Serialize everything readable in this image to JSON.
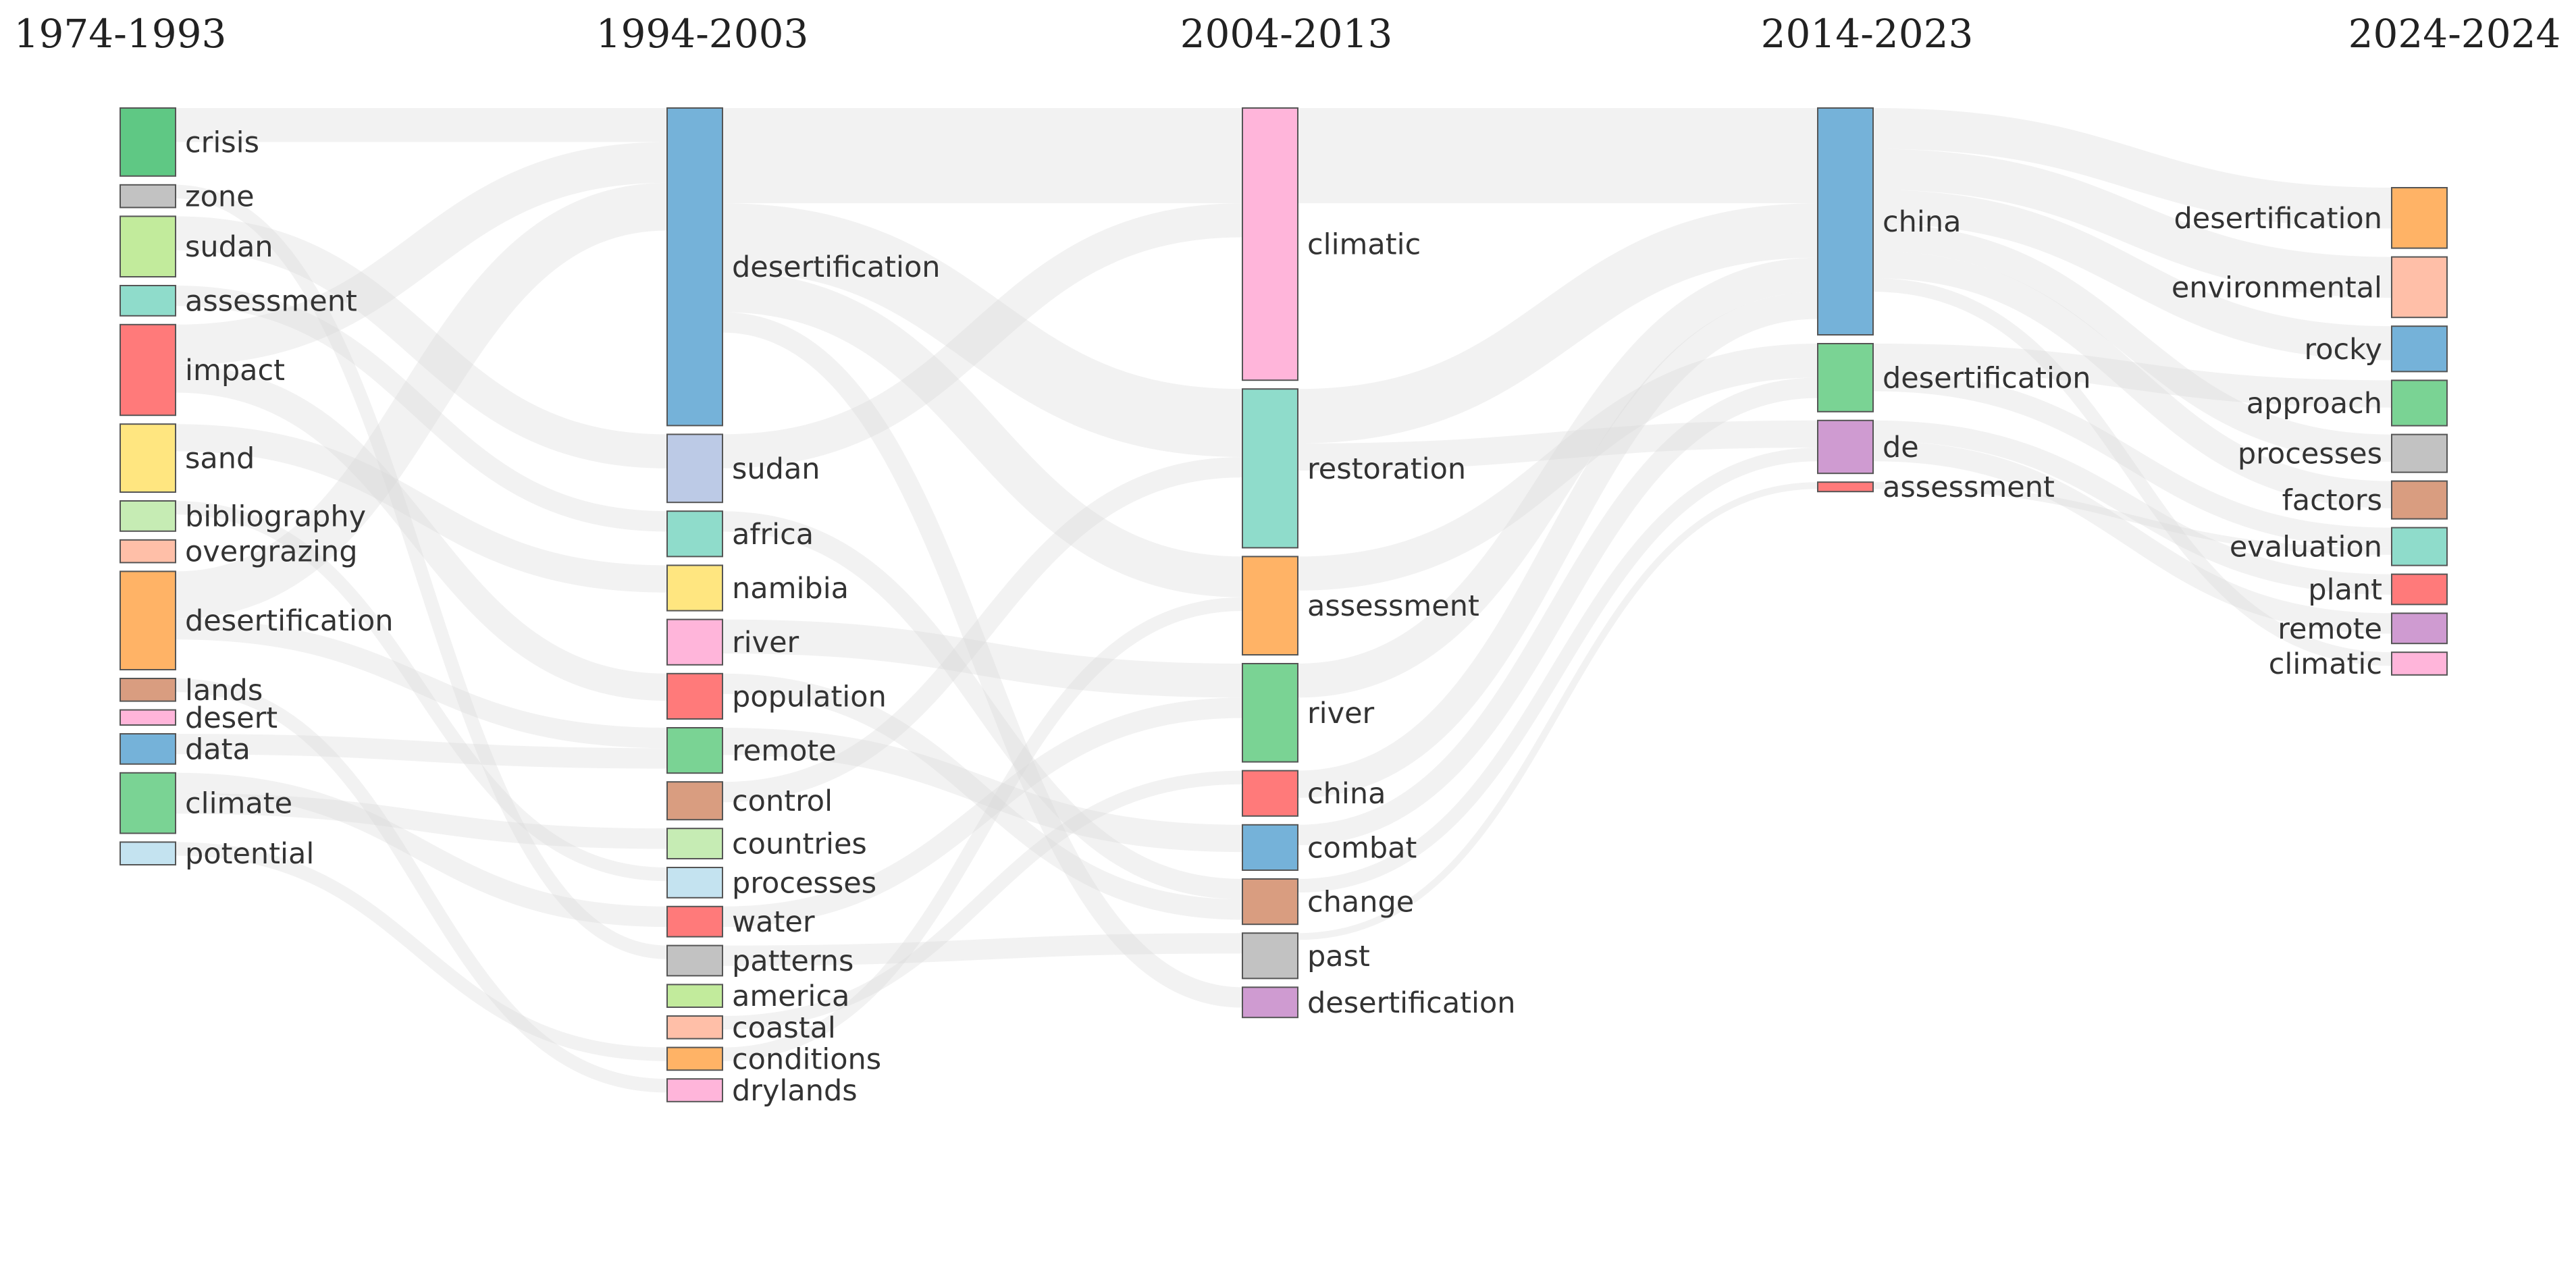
{
  "chart_data": {
    "type": "sankey",
    "title": "",
    "periods": [
      "1974-1993",
      "1994-2003",
      "2004-2013",
      "2014-2023",
      "2024-2024"
    ],
    "columns": [
      {
        "period": "1974-1993",
        "nodes": [
          {
            "label": "crisis",
            "value": 9,
            "color": "#5fc884"
          },
          {
            "label": "zone",
            "value": 3,
            "color": "#c2c2c2"
          },
          {
            "label": "sudan",
            "value": 8,
            "color": "#c2eb9c"
          },
          {
            "label": "assessment",
            "value": 4,
            "color": "#8fdccb"
          },
          {
            "label": "impact",
            "value": 12,
            "color": "#ff7a7a"
          },
          {
            "label": "sand",
            "value": 9,
            "color": "#ffe680"
          },
          {
            "label": "bibliography",
            "value": 4,
            "color": "#c6ecb4"
          },
          {
            "label": "overgrazing",
            "value": 3,
            "color": "#ffbfa8"
          },
          {
            "label": "desertification",
            "value": 13,
            "color": "#ffb366"
          },
          {
            "label": "lands",
            "value": 3,
            "color": "#d99d80"
          },
          {
            "label": "desert",
            "value": 2,
            "color": "#ffb5da"
          },
          {
            "label": "data",
            "value": 4,
            "color": "#75b2d9"
          },
          {
            "label": "climate",
            "value": 8,
            "color": "#7ad394"
          },
          {
            "label": "potential",
            "value": 3,
            "color": "#c4e3f0"
          }
        ]
      },
      {
        "period": "1994-2003",
        "nodes": [
          {
            "label": "desertification",
            "value": 42,
            "color": "#75b2d9"
          },
          {
            "label": "sudan",
            "value": 9,
            "color": "#bccae6"
          },
          {
            "label": "africa",
            "value": 6,
            "color": "#8fdccb"
          },
          {
            "label": "namibia",
            "value": 6,
            "color": "#ffe680"
          },
          {
            "label": "river",
            "value": 6,
            "color": "#ffb5da"
          },
          {
            "label": "population",
            "value": 6,
            "color": "#ff7a7a"
          },
          {
            "label": "remote",
            "value": 6,
            "color": "#7ad394"
          },
          {
            "label": "control",
            "value": 5,
            "color": "#d99d80"
          },
          {
            "label": "countries",
            "value": 4,
            "color": "#c6ecb4"
          },
          {
            "label": "processes",
            "value": 4,
            "color": "#c4e3f0"
          },
          {
            "label": "water",
            "value": 4,
            "color": "#ff7a7a"
          },
          {
            "label": "patterns",
            "value": 4,
            "color": "#c2c2c2"
          },
          {
            "label": "america",
            "value": 3,
            "color": "#c2eb9c"
          },
          {
            "label": "coastal",
            "value": 3,
            "color": "#ffbfa8"
          },
          {
            "label": "conditions",
            "value": 3,
            "color": "#ffb366"
          },
          {
            "label": "drylands",
            "value": 3,
            "color": "#ffb5da"
          }
        ]
      },
      {
        "period": "2004-2013",
        "nodes": [
          {
            "label": "climatic",
            "value": 36,
            "color": "#ffb5da"
          },
          {
            "label": "restoration",
            "value": 21,
            "color": "#8fdccb"
          },
          {
            "label": "assessment",
            "value": 13,
            "color": "#ffb366"
          },
          {
            "label": "river",
            "value": 13,
            "color": "#7ad394"
          },
          {
            "label": "china",
            "value": 6,
            "color": "#ff7a7a"
          },
          {
            "label": "combat",
            "value": 6,
            "color": "#75b2d9"
          },
          {
            "label": "change",
            "value": 6,
            "color": "#d99d80"
          },
          {
            "label": "past",
            "value": 6,
            "color": "#c2c2c2"
          },
          {
            "label": "desertification",
            "value": 4,
            "color": "#cf9bd1"
          }
        ]
      },
      {
        "period": "2014-2023",
        "nodes": [
          {
            "label": "china",
            "value": 30,
            "color": "#75b2d9"
          },
          {
            "label": "desertification",
            "value": 9,
            "color": "#7ad394"
          },
          {
            "label": "de",
            "value": 7,
            "color": "#cf9bd1"
          },
          {
            "label": "assessment",
            "value": 1,
            "color": "#ff7a7a"
          }
        ]
      },
      {
        "period": "2024-2024",
        "nodes": [
          {
            "label": "desertification",
            "value": 8,
            "color": "#ffb366"
          },
          {
            "label": "environmental",
            "value": 8,
            "color": "#ffbfa8"
          },
          {
            "label": "rocky",
            "value": 6,
            "color": "#75b2d9"
          },
          {
            "label": "approach",
            "value": 6,
            "color": "#7ad394"
          },
          {
            "label": "processes",
            "value": 5,
            "color": "#c2c2c2"
          },
          {
            "label": "factors",
            "value": 5,
            "color": "#d99d80"
          },
          {
            "label": "evaluation",
            "value": 5,
            "color": "#8fdccb"
          },
          {
            "label": "plant",
            "value": 4,
            "color": "#ff7a7a"
          },
          {
            "label": "remote",
            "value": 4,
            "color": "#cf9bd1"
          },
          {
            "label": "climatic",
            "value": 3,
            "color": "#ffb5da"
          }
        ]
      }
    ],
    "links": [
      {
        "source": [
          0,
          0
        ],
        "target": [
          1,
          0
        ],
        "value": 5
      },
      {
        "source": [
          0,
          2
        ],
        "target": [
          1,
          1
        ],
        "value": 5
      },
      {
        "source": [
          0,
          4
        ],
        "target": [
          1,
          0
        ],
        "value": 6
      },
      {
        "source": [
          0,
          4
        ],
        "target": [
          1,
          5
        ],
        "value": 4
      },
      {
        "source": [
          0,
          5
        ],
        "target": [
          1,
          3
        ],
        "value": 4
      },
      {
        "source": [
          0,
          8
        ],
        "target": [
          1,
          0
        ],
        "value": 7
      },
      {
        "source": [
          0,
          8
        ],
        "target": [
          1,
          6
        ],
        "value": 3
      },
      {
        "source": [
          0,
          12
        ],
        "target": [
          1,
          10
        ],
        "value": 3
      },
      {
        "source": [
          0,
          12
        ],
        "target": [
          1,
          8
        ],
        "value": 3
      },
      {
        "source": [
          0,
          11
        ],
        "target": [
          1,
          6
        ],
        "value": 3
      },
      {
        "source": [
          0,
          3
        ],
        "target": [
          1,
          2
        ],
        "value": 3
      },
      {
        "source": [
          0,
          13
        ],
        "target": [
          1,
          14
        ],
        "value": 2
      },
      {
        "source": [
          0,
          1
        ],
        "target": [
          1,
          11
        ],
        "value": 2
      },
      {
        "source": [
          0,
          9
        ],
        "target": [
          1,
          15
        ],
        "value": 2
      },
      {
        "source": [
          0,
          6
        ],
        "target": [
          1,
          9
        ],
        "value": 2
      },
      {
        "source": [
          1,
          0
        ],
        "target": [
          2,
          0
        ],
        "value": 14
      },
      {
        "source": [
          1,
          0
        ],
        "target": [
          2,
          1
        ],
        "value": 10
      },
      {
        "source": [
          1,
          0
        ],
        "target": [
          2,
          2
        ],
        "value": 6
      },
      {
        "source": [
          1,
          0
        ],
        "target": [
          2,
          8
        ],
        "value": 3
      },
      {
        "source": [
          1,
          4
        ],
        "target": [
          2,
          3
        ],
        "value": 5
      },
      {
        "source": [
          1,
          1
        ],
        "target": [
          2,
          0
        ],
        "value": 5
      },
      {
        "source": [
          1,
          6
        ],
        "target": [
          2,
          5
        ],
        "value": 4
      },
      {
        "source": [
          1,
          7
        ],
        "target": [
          2,
          1
        ],
        "value": 3
      },
      {
        "source": [
          1,
          2
        ],
        "target": [
          2,
          6
        ],
        "value": 3
      },
      {
        "source": [
          1,
          10
        ],
        "target": [
          2,
          3
        ],
        "value": 3
      },
      {
        "source": [
          1,
          5
        ],
        "target": [
          2,
          6
        ],
        "value": 3
      },
      {
        "source": [
          1,
          11
        ],
        "target": [
          2,
          7
        ],
        "value": 3
      },
      {
        "source": [
          1,
          13
        ],
        "target": [
          2,
          4
        ],
        "value": 2
      },
      {
        "source": [
          1,
          14
        ],
        "target": [
          2,
          2
        ],
        "value": 2
      },
      {
        "source": [
          2,
          0
        ],
        "target": [
          3,
          0
        ],
        "value": 14
      },
      {
        "source": [
          2,
          1
        ],
        "target": [
          3,
          0
        ],
        "value": 8
      },
      {
        "source": [
          2,
          2
        ],
        "target": [
          3,
          1
        ],
        "value": 5
      },
      {
        "source": [
          2,
          3
        ],
        "target": [
          3,
          0
        ],
        "value": 5
      },
      {
        "source": [
          2,
          4
        ],
        "target": [
          3,
          0
        ],
        "value": 4
      },
      {
        "source": [
          2,
          1
        ],
        "target": [
          3,
          2
        ],
        "value": 4
      },
      {
        "source": [
          2,
          5
        ],
        "target": [
          3,
          1
        ],
        "value": 3
      },
      {
        "source": [
          2,
          6
        ],
        "target": [
          3,
          2
        ],
        "value": 2
      },
      {
        "source": [
          2,
          7
        ],
        "target": [
          3,
          3
        ],
        "value": 1
      },
      {
        "source": [
          3,
          0
        ],
        "target": [
          4,
          0
        ],
        "value": 6
      },
      {
        "source": [
          3,
          0
        ],
        "target": [
          4,
          1
        ],
        "value": 6
      },
      {
        "source": [
          3,
          0
        ],
        "target": [
          4,
          2
        ],
        "value": 5
      },
      {
        "source": [
          3,
          0
        ],
        "target": [
          4,
          4
        ],
        "value": 4
      },
      {
        "source": [
          3,
          0
        ],
        "target": [
          4,
          5
        ],
        "value": 4
      },
      {
        "source": [
          3,
          1
        ],
        "target": [
          4,
          3
        ],
        "value": 4
      },
      {
        "source": [
          3,
          1
        ],
        "target": [
          4,
          6
        ],
        "value": 3
      },
      {
        "source": [
          3,
          2
        ],
        "target": [
          4,
          7
        ],
        "value": 3
      },
      {
        "source": [
          3,
          2
        ],
        "target": [
          4,
          8
        ],
        "value": 3
      },
      {
        "source": [
          3,
          0
        ],
        "target": [
          4,
          9
        ],
        "value": 2
      },
      {
        "source": [
          3,
          3
        ],
        "target": [
          4,
          6
        ],
        "value": 1
      }
    ]
  }
}
